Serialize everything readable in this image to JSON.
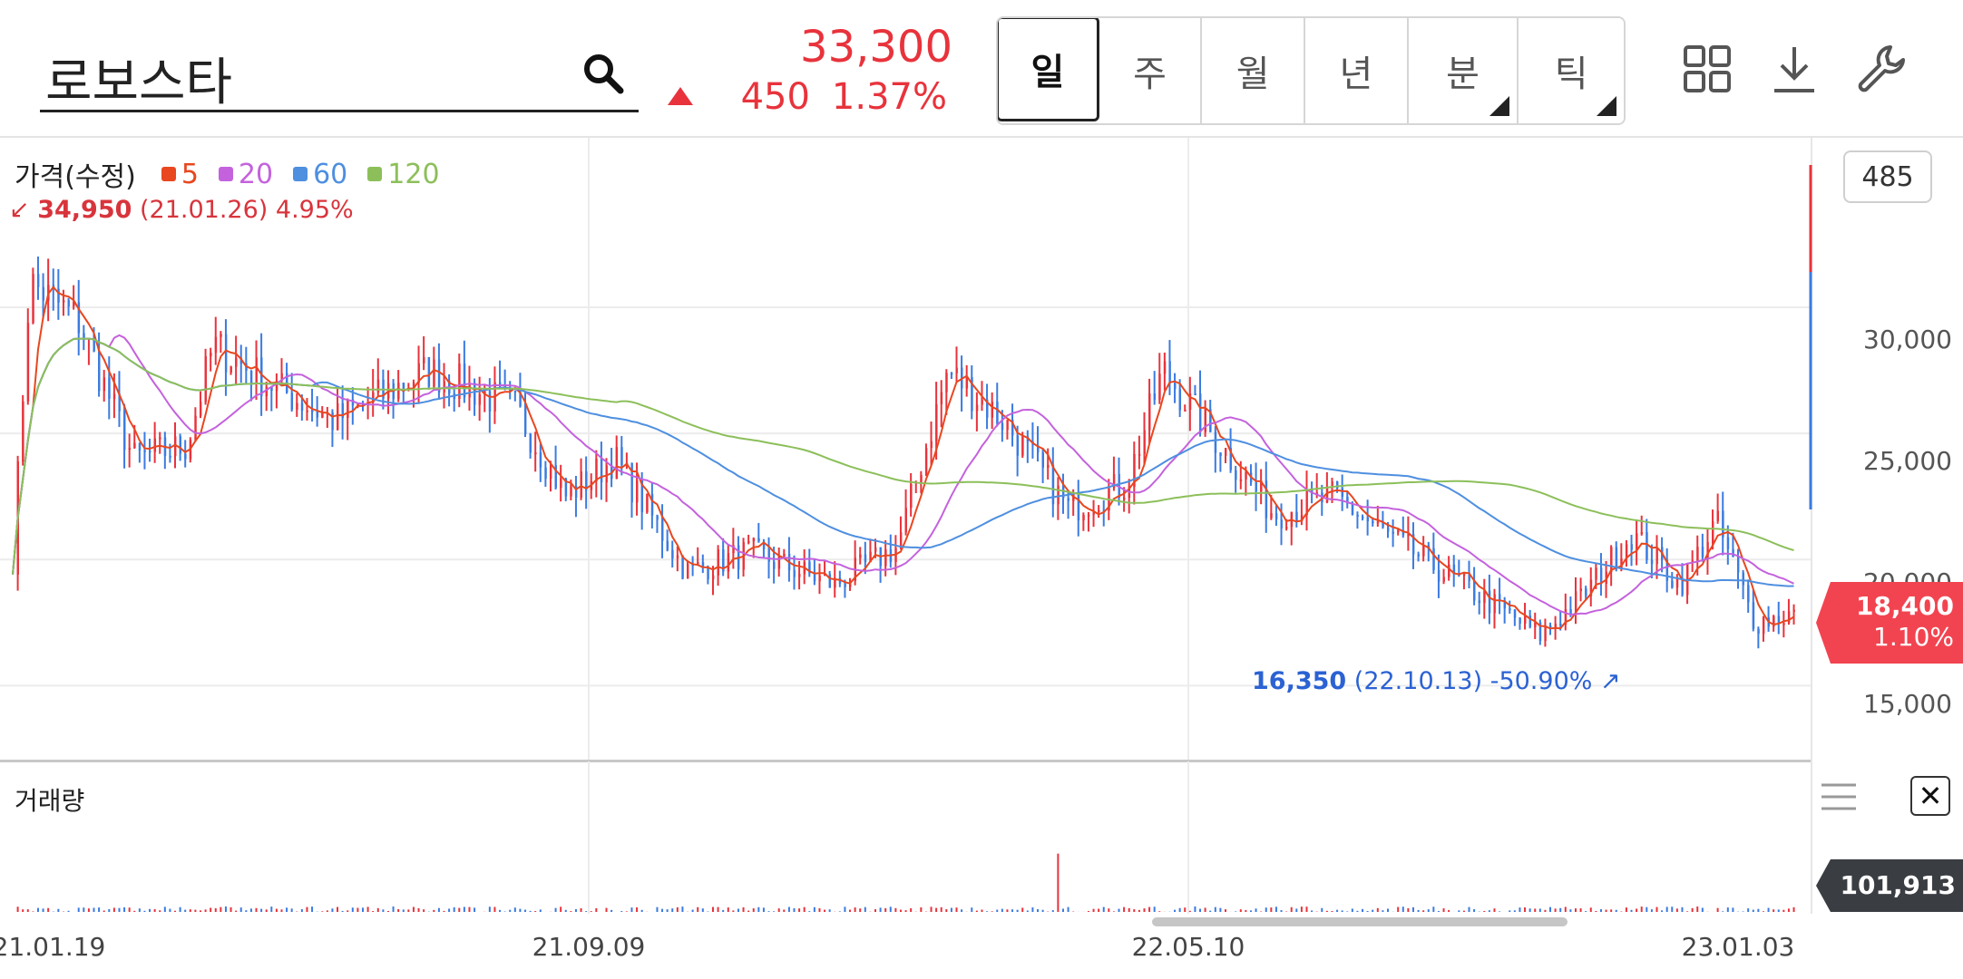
{
  "header": {
    "stock_name": "로보스타",
    "price": "33,300",
    "change_amount": "450",
    "change_pct": "1.37%",
    "direction": "up",
    "periods": [
      {
        "label": "일",
        "active": true,
        "has_corner": false
      },
      {
        "label": "주",
        "active": false,
        "has_corner": false
      },
      {
        "label": "월",
        "active": false,
        "has_corner": false
      },
      {
        "label": "년",
        "active": false,
        "has_corner": false
      },
      {
        "label": "분",
        "active": false,
        "has_corner": true
      },
      {
        "label": "틱",
        "active": false,
        "has_corner": true
      }
    ],
    "icons": [
      "grid-icon",
      "download-icon",
      "wrench-icon"
    ]
  },
  "chart": {
    "legend_title": "가격(수정)",
    "legend": [
      {
        "label": "5",
        "color": "#e8471f"
      },
      {
        "label": "20",
        "color": "#c462dd"
      },
      {
        "label": "60",
        "color": "#4e8fe0"
      },
      {
        "label": "120",
        "color": "#8cbf5a"
      }
    ],
    "high": {
      "price": "34,950",
      "date": "(21.01.26)",
      "pct": "4.95%"
    },
    "low": {
      "price": "16,350",
      "date": "(22.10.13)",
      "pct": "-50.90%"
    },
    "count": "485",
    "y_ticks": [
      "30,000",
      "25,000",
      "20,000",
      "15,000"
    ],
    "current": {
      "price": "18,400",
      "pct": "1.10%"
    },
    "volume_title": "거래량",
    "volume_current": "101,913",
    "x_ticks": [
      "21.01.19",
      "21.09.09",
      "22.05.10",
      "23.01.03"
    ],
    "colors": {
      "up": "#e8333c",
      "down": "#3b7be0"
    }
  },
  "chart_data": {
    "type": "candlestick",
    "y_ticks": [
      30000,
      25000,
      20000,
      15000
    ],
    "ylim": [
      13000,
      36000
    ],
    "x_ticks": [
      "21.01.19",
      "21.09.09",
      "22.05.10",
      "23.01.03"
    ],
    "anchors": [
      {
        "date": "21.01.19",
        "close": 20000
      },
      {
        "date": "21.01.26",
        "close": 31000
      },
      {
        "date": "21.02.15",
        "close": 29500
      },
      {
        "date": "21.03.10",
        "close": 24000
      },
      {
        "date": "21.04.01",
        "close": 24500
      },
      {
        "date": "21.04.12",
        "close": 28500
      },
      {
        "date": "21.05.05",
        "close": 27000
      },
      {
        "date": "21.06.01",
        "close": 25500
      },
      {
        "date": "21.07.10",
        "close": 27500
      },
      {
        "date": "21.08.15",
        "close": 26000
      },
      {
        "date": "21.09.05",
        "close": 22500
      },
      {
        "date": "21.09.25",
        "close": 24000
      },
      {
        "date": "21.10.25",
        "close": 19500
      },
      {
        "date": "21.11.20",
        "close": 20300
      },
      {
        "date": "21.12.25",
        "close": 19000
      },
      {
        "date": "22.01.20",
        "close": 20500
      },
      {
        "date": "22.02.10",
        "close": 27500
      },
      {
        "date": "22.03.05",
        "close": 25500
      },
      {
        "date": "22.04.01",
        "close": 22000
      },
      {
        "date": "22.04.25",
        "close": 23000
      },
      {
        "date": "22.05.10",
        "close": 27500
      },
      {
        "date": "22.05.30",
        "close": 25000
      },
      {
        "date": "22.06.25",
        "close": 21800
      },
      {
        "date": "22.07.20",
        "close": 22500
      },
      {
        "date": "22.08.10",
        "close": 21000
      },
      {
        "date": "22.10.13",
        "close": 17000
      },
      {
        "date": "22.10.30",
        "close": 18500
      },
      {
        "date": "22.11.20",
        "close": 21000
      },
      {
        "date": "22.12.10",
        "close": 19000
      },
      {
        "date": "22.12.25",
        "close": 21500
      },
      {
        "date": "23.01.10",
        "close": 17500
      },
      {
        "date": "23.02.01",
        "close": 18000
      },
      {
        "date": "23.02.25",
        "close": 20200
      },
      {
        "date": "23.03.10",
        "close": 19600
      },
      {
        "date": "23.03.25",
        "close": 18400
      }
    ],
    "series": [
      {
        "name": "5",
        "color": "#e8471f"
      },
      {
        "name": "20",
        "color": "#c462dd"
      },
      {
        "name": "60",
        "color": "#4e8fe0"
      },
      {
        "name": "120",
        "color": "#8cbf5a"
      }
    ],
    "high": {
      "value": 34950,
      "date": "21.01.26",
      "pct": 4.95
    },
    "low": {
      "value": 16350,
      "date": "22.10.13",
      "pct": -50.9
    },
    "last_close": 18400,
    "last_volume": 101913
  }
}
